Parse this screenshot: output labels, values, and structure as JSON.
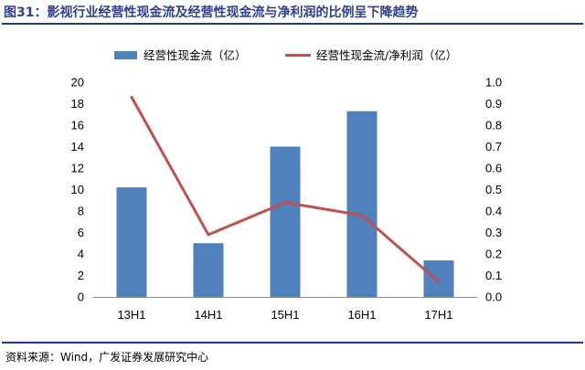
{
  "title": "图31：影视行业经营性现金流及经营性现金流与净利润的比例呈下降趋势",
  "source": "资料来源：Wind，广发证券发展研究中心",
  "colors": {
    "bar": "#4f81bd",
    "line": "#c0504d",
    "rule": "#1f3a8a"
  },
  "chart_data": {
    "type": "bar",
    "categories": [
      "13H1",
      "14H1",
      "15H1",
      "16H1",
      "17H1"
    ],
    "series": [
      {
        "name": "经营性现金流（亿）",
        "type": "bar",
        "axis": "left",
        "values": [
          10.2,
          5.0,
          14.0,
          17.3,
          3.4
        ]
      },
      {
        "name": "经营性现金流/净利润（亿）",
        "type": "line",
        "axis": "right",
        "values": [
          0.93,
          0.29,
          0.44,
          0.38,
          0.07
        ]
      }
    ],
    "y_left": {
      "lim": [
        0,
        20
      ],
      "ticks": [
        "0",
        "2",
        "4",
        "6",
        "8",
        "10",
        "12",
        "14",
        "16",
        "18",
        "20"
      ]
    },
    "y_right": {
      "lim": [
        0,
        1.0
      ],
      "ticks": [
        "0.0",
        "0.1",
        "0.2",
        "0.3",
        "0.4",
        "0.5",
        "0.6",
        "0.7",
        "0.8",
        "0.9",
        "1.0"
      ]
    },
    "legend_position": "top",
    "grid": false
  }
}
